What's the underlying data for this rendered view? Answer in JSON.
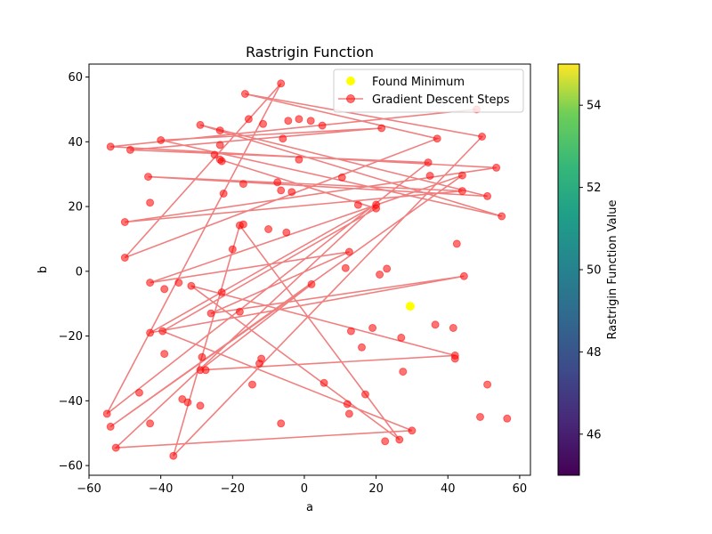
{
  "chart_data": {
    "type": "scatter",
    "title": "Rastrigin Function",
    "xlabel": "a",
    "ylabel": "b",
    "xlim": [
      -60,
      63
    ],
    "ylim": [
      -63,
      64
    ],
    "xticks": [
      -60,
      -40,
      -20,
      0,
      20,
      40,
      60
    ],
    "yticks": [
      -60,
      -40,
      -20,
      0,
      20,
      40,
      60
    ],
    "xtick_labels": [
      "−60",
      "−40",
      "−20",
      "0",
      "20",
      "40",
      "60"
    ],
    "ytick_labels": [
      "−60",
      "−40",
      "−20",
      "0",
      "20",
      "40",
      "60"
    ],
    "grid": false,
    "legend_position": "top-right",
    "series": [
      {
        "name": "Found Minimum",
        "kind": "scatter",
        "color": "#ffff00",
        "points": [
          [
            29.5,
            -10.8
          ]
        ]
      },
      {
        "name": "Gradient Descent Steps",
        "kind": "line-markers",
        "color": "#ff0000",
        "line_color": "#f08080",
        "points": [
          [
            48,
            50
          ],
          [
            -54,
            38.5
          ],
          [
            53.5,
            32
          ],
          [
            -50,
            15.2
          ],
          [
            44,
            24.8
          ],
          [
            -43.5,
            29.2
          ],
          [
            51,
            23.2
          ],
          [
            -29,
            45.2
          ],
          [
            55,
            17
          ],
          [
            -40,
            40.5
          ],
          [
            21.5,
            44.2
          ],
          [
            -48.5,
            37.5
          ],
          [
            34.5,
            33.6
          ],
          [
            -55,
            -44
          ],
          [
            -6.5,
            58
          ],
          [
            -50,
            4.2
          ],
          [
            37,
            41
          ],
          [
            -16.5,
            54.8
          ],
          [
            49.5,
            41.6
          ],
          [
            -36.5,
            -57
          ],
          [
            -18,
            14.2
          ],
          [
            26.5,
            -52
          ],
          [
            -31.5,
            -4.5
          ],
          [
            42,
            -26
          ],
          [
            -29,
            -30.5
          ],
          [
            2,
            -4
          ],
          [
            -54,
            -48
          ],
          [
            44,
            29.6
          ],
          [
            -43,
            -3.5
          ],
          [
            12.5,
            6
          ],
          [
            -26,
            -13
          ],
          [
            44.5,
            -1.5
          ],
          [
            -43,
            -19
          ],
          [
            20,
            20.6
          ],
          [
            -52.5,
            -54.5
          ],
          [
            30,
            -49.2
          ],
          [
            -39.5,
            -18.5
          ],
          [
            20,
            19.4
          ],
          [
            -23.5,
            34.5
          ]
        ]
      }
    ],
    "colorbar": {
      "label": "Rastrigin Function Value",
      "min": 45,
      "max": 55,
      "ticks": [
        46,
        48,
        50,
        52,
        54
      ],
      "colormap": "viridis"
    }
  },
  "noise_points": [
    [
      -23.5,
      39
    ],
    [
      -22.5,
      24
    ],
    [
      -15.5,
      47
    ],
    [
      -11.5,
      45.5
    ],
    [
      -4.5,
      46.5
    ],
    [
      -1.5,
      47
    ],
    [
      1.8,
      46.5
    ],
    [
      5,
      45
    ],
    [
      -23.5,
      43.5
    ],
    [
      -25,
      36
    ],
    [
      -23,
      34
    ],
    [
      -17,
      27
    ],
    [
      -7.5,
      27.5
    ],
    [
      -6.5,
      25
    ],
    [
      -3.5,
      24.5
    ],
    [
      -6,
      41
    ],
    [
      -1.5,
      34.5
    ],
    [
      10.5,
      29
    ],
    [
      15,
      20.5
    ],
    [
      -43,
      21.2
    ],
    [
      -17,
      14.5
    ],
    [
      -10,
      13
    ],
    [
      -5,
      12
    ],
    [
      -20,
      6.8
    ],
    [
      11.5,
      1
    ],
    [
      21,
      -1
    ],
    [
      23,
      0.8
    ],
    [
      -12.5,
      -28.5
    ],
    [
      -14.5,
      -35
    ],
    [
      -34,
      -39.5
    ],
    [
      -32.5,
      -40.5
    ],
    [
      -29,
      -41.5
    ],
    [
      -28.5,
      -26.5
    ],
    [
      -27.5,
      -30.5
    ],
    [
      -12,
      -27
    ],
    [
      -18,
      -12.5
    ],
    [
      -23,
      -6.5
    ],
    [
      -35,
      -3.5
    ],
    [
      -39,
      -5.5
    ],
    [
      -39,
      -25.5
    ],
    [
      -46,
      -37.5
    ],
    [
      -43,
      -47
    ],
    [
      13,
      -18.5
    ],
    [
      16,
      -23.5
    ],
    [
      19,
      -17.5
    ],
    [
      27,
      -20.5
    ],
    [
      36.5,
      -16.5
    ],
    [
      41.5,
      -17.5
    ],
    [
      42,
      -27
    ],
    [
      27.5,
      -31
    ],
    [
      17,
      -38
    ],
    [
      12,
      -41
    ],
    [
      12.5,
      -44
    ],
    [
      22.5,
      -52.5
    ],
    [
      5.5,
      -34.5
    ],
    [
      -6.5,
      -47
    ],
    [
      49,
      -45
    ],
    [
      51,
      -35
    ],
    [
      56.5,
      -45.5
    ],
    [
      42.5,
      8.5
    ],
    [
      35,
      29.5
    ]
  ]
}
